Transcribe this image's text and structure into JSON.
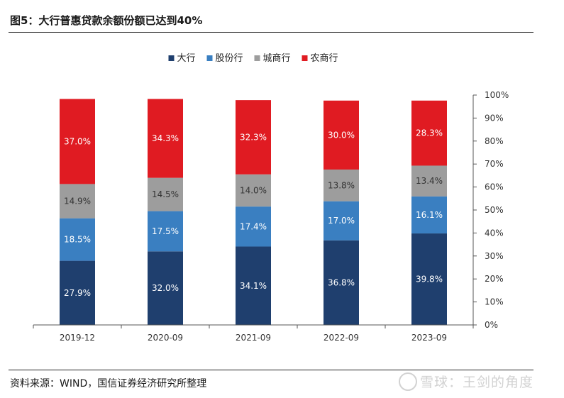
{
  "title": "图5：大行普惠贷款余额份额已达到40%",
  "source": "资料来源：WIND，国信证券经济研究所整理",
  "watermark": "雪球：王剑的角度",
  "chart_data": {
    "type": "bar",
    "stacked": true,
    "categories": [
      "2019-12",
      "2020-09",
      "2021-09",
      "2022-09",
      "2023-09"
    ],
    "series": [
      {
        "name": "大行",
        "color": "#1f3f6e",
        "values": [
          27.9,
          32.0,
          34.1,
          36.8,
          39.8
        ],
        "labels": [
          "27.9%",
          "32.0%",
          "34.1%",
          "36.8%",
          "39.8%"
        ]
      },
      {
        "name": "股份行",
        "color": "#3a7fc1",
        "values": [
          18.5,
          17.5,
          17.4,
          17.0,
          16.1
        ],
        "labels": [
          "18.5%",
          "17.5%",
          "17.4%",
          "17.0%",
          "16.1%"
        ]
      },
      {
        "name": "城商行",
        "color": "#9d9d9d",
        "values": [
          14.9,
          14.5,
          14.0,
          13.8,
          13.4
        ],
        "labels": [
          "14.9%",
          "14.5%",
          "14.0%",
          "13.8%",
          "13.4%"
        ]
      },
      {
        "name": "农商行",
        "color": "#e01b22",
        "values": [
          37.0,
          34.3,
          32.3,
          30.0,
          28.3
        ],
        "labels": [
          "37.0%",
          "34.3%",
          "32.3%",
          "30.0%",
          "28.3%"
        ]
      }
    ],
    "y_ticks": [
      "0%",
      "10%",
      "20%",
      "30%",
      "40%",
      "50%",
      "60%",
      "70%",
      "80%",
      "90%",
      "100%"
    ],
    "ylim": [
      0,
      100
    ],
    "y_axis_side": "right",
    "legend_position": "top-center",
    "grid": false
  }
}
